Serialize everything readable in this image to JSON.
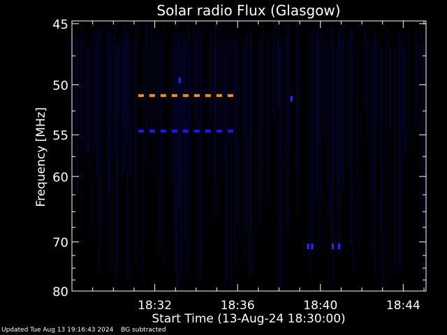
{
  "chart_data": {
    "type": "heatmap",
    "title": "Solar radio Flux (Glasgow)",
    "xlabel": "Start Time (13-Aug-24 18:30:00)",
    "ylabel": "Frequency [MHz]",
    "x_tick_labels": [
      "18:32",
      "18:36",
      "18:40",
      "18:44"
    ],
    "x_ticks_minutes_after_start": [
      2,
      6,
      10,
      14
    ],
    "x_range_minutes_after_start": [
      -2.0,
      15.1
    ],
    "y_tick_labels": [
      "45",
      "50",
      "55",
      "60",
      "70",
      "80"
    ],
    "y_ticks": [
      45,
      50,
      55,
      60,
      70,
      80
    ],
    "y_range": [
      44.8,
      80
    ],
    "y_scale": "reciprocal",
    "y_direction": "increasing downward",
    "background_color": "#000000",
    "noise_color": "#0a0a55",
    "features": [
      {
        "kind": "dashed-line",
        "color": "#ff8c1a",
        "freq_mhz": 51.0,
        "t_start": 1.2,
        "t_end": 6.0
      },
      {
        "kind": "dashed-line",
        "color": "#1a1aff",
        "freq_mhz": 54.6,
        "t_start": 1.2,
        "t_end": 6.0
      },
      {
        "kind": "spot",
        "color": "#2a2aff",
        "freq_mhz": 51.3,
        "t": 8.6
      },
      {
        "kind": "spot",
        "color": "#2a2aff",
        "freq_mhz": 49.6,
        "t": 3.2
      },
      {
        "kind": "spot",
        "color": "#2a2aff",
        "freq_mhz": 70.8,
        "t": 9.4
      },
      {
        "kind": "spot",
        "color": "#2a2aff",
        "freq_mhz": 70.8,
        "t": 9.6
      },
      {
        "kind": "spot",
        "color": "#2a2aff",
        "freq_mhz": 70.8,
        "t": 10.6
      },
      {
        "kind": "spot",
        "color": "#2a2aff",
        "freq_mhz": 70.8,
        "t": 10.9
      }
    ]
  },
  "footer": {
    "updated": "Updated Tue Aug 13 19:16:43 2024",
    "note": "BG subtracted"
  }
}
